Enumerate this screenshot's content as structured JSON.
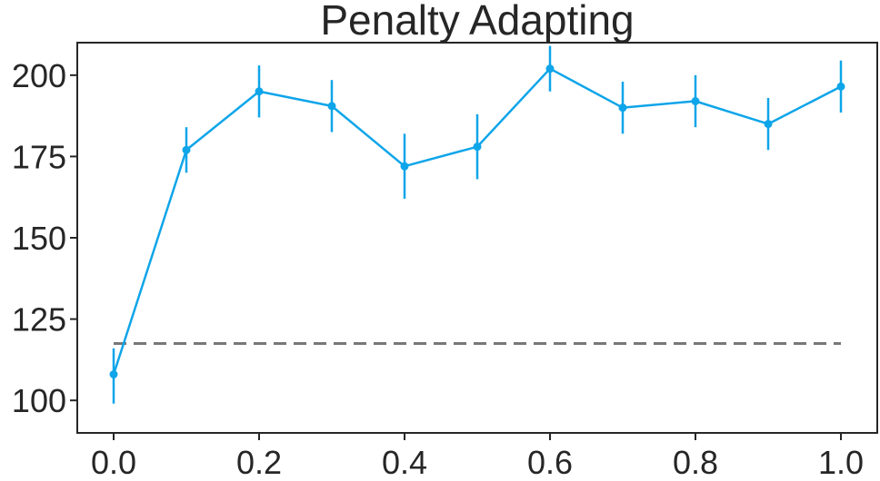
{
  "chart_data": {
    "type": "line",
    "title": "Penalty Adapting",
    "xlabel": "",
    "ylabel": "",
    "xlim": [
      -0.05,
      1.05
    ],
    "ylim": [
      90,
      210
    ],
    "x_ticks": [
      0.0,
      0.2,
      0.4,
      0.6,
      0.8,
      1.0
    ],
    "x_tick_labels": [
      "0.0",
      "0.2",
      "0.4",
      "0.6",
      "0.8",
      "1.0"
    ],
    "y_ticks": [
      100,
      125,
      150,
      175,
      200
    ],
    "y_tick_labels": [
      "100",
      "125",
      "150",
      "175",
      "200"
    ],
    "grid": false,
    "legend": "none",
    "series": [
      {
        "color": "#0ea5e9",
        "marker": "circle",
        "x": [
          0.0,
          0.1,
          0.2,
          0.3,
          0.4,
          0.5,
          0.6,
          0.7,
          0.8,
          0.9,
          1.0
        ],
        "y": [
          108,
          177,
          195,
          190.5,
          172,
          178,
          202,
          190,
          192,
          185,
          196.5
        ],
        "err_low": [
          99,
          170,
          187,
          182.5,
          162,
          168,
          195,
          182,
          184,
          177,
          188.5
        ],
        "err_high": [
          116,
          184,
          203,
          198.5,
          182,
          188,
          209,
          198,
          200,
          193,
          204.5
        ]
      }
    ],
    "reference_line": {
      "y": 117.5,
      "x_start": 0.0,
      "x_end": 1.0,
      "style": "dashed",
      "color": "#777777"
    }
  }
}
